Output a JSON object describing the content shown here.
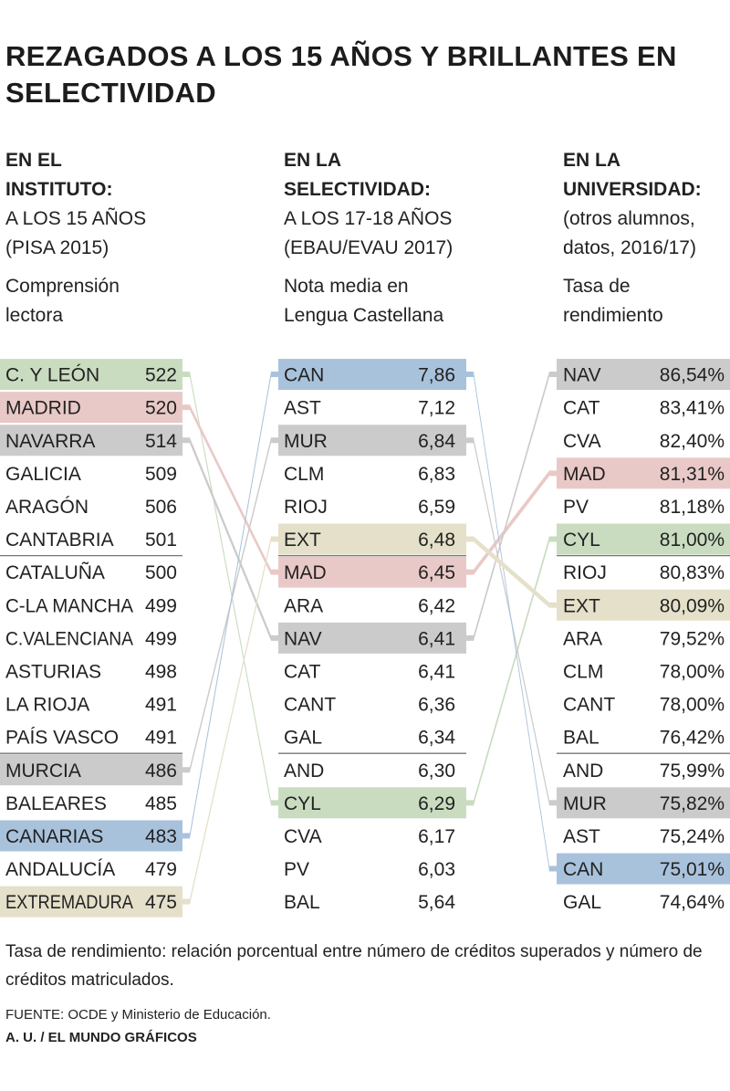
{
  "title": "REZAGADOS A LOS 15 AÑOS Y BRILLANTES EN SELECTIVIDAD",
  "colors": {
    "green": "#c9dcc0",
    "red": "#e9c9c7",
    "gray": "#cbcbcb",
    "blue": "#a9c2dc",
    "tan": "#e5e0ca"
  },
  "columns": [
    {
      "heading_bold": [
        "EN EL",
        "INSTITUTO:"
      ],
      "heading_normal": [
        "A LOS 15 AÑOS",
        "(PISA 2015)"
      ],
      "metric": [
        "Comprensión",
        "lectora"
      ]
    },
    {
      "heading_bold": [
        "EN LA",
        "SELECTIVIDAD:"
      ],
      "heading_normal": [
        "A LOS 17-18 AÑOS",
        "(EBAU/EVAU 2017)"
      ],
      "metric": [
        "Nota media en",
        "Lengua Castellana"
      ]
    },
    {
      "heading_bold": [
        "EN LA",
        "UNIVERSIDAD:"
      ],
      "heading_normal": [
        "(otros alumnos,",
        "datos, 2016/17)"
      ],
      "metric": [
        "Tasa de",
        "rendimiento"
      ]
    }
  ],
  "chart_data": {
    "type": "table",
    "columns": [
      {
        "rows": [
          {
            "label": "C. Y LEÓN",
            "value": "522",
            "hl": "green"
          },
          {
            "label": "MADRID",
            "value": "520",
            "hl": "red"
          },
          {
            "label": "NAVARRA",
            "value": "514",
            "hl": "gray"
          },
          {
            "label": "GALICIA",
            "value": "509"
          },
          {
            "label": "ARAGÓN",
            "value": "506"
          },
          {
            "label": "CANTABRIA",
            "value": "501"
          },
          {
            "label": "CATALUÑA",
            "value": "500"
          },
          {
            "label": "C-LA MANCHA",
            "value": "499"
          },
          {
            "label": "C.VALENCIANA",
            "value": "499"
          },
          {
            "label": "ASTURIAS",
            "value": "498"
          },
          {
            "label": "LA RIOJA",
            "value": "491"
          },
          {
            "label": "PAÍS VASCO",
            "value": "491"
          },
          {
            "label": "MURCIA",
            "value": "486",
            "hl": "gray"
          },
          {
            "label": "BALEARES",
            "value": "485"
          },
          {
            "label": "CANARIAS",
            "value": "483",
            "hl": "blue"
          },
          {
            "label": "ANDALUCÍA",
            "value": "479"
          },
          {
            "label": "EXTREMADURA",
            "value": "475",
            "hl": "tan"
          }
        ]
      },
      {
        "rows": [
          {
            "label": "CAN",
            "value": "7,86",
            "hl": "blue"
          },
          {
            "label": "AST",
            "value": "7,12"
          },
          {
            "label": "MUR",
            "value": "6,84",
            "hl": "gray"
          },
          {
            "label": "CLM",
            "value": "6,83"
          },
          {
            "label": "RIOJ",
            "value": "6,59"
          },
          {
            "label": "EXT",
            "value": "6,48",
            "hl": "tan"
          },
          {
            "label": "MAD",
            "value": "6,45",
            "hl": "red"
          },
          {
            "label": "ARA",
            "value": "6,42"
          },
          {
            "label": "NAV",
            "value": "6,41",
            "hl": "gray"
          },
          {
            "label": "CAT",
            "value": "6,41"
          },
          {
            "label": "CANT",
            "value": "6,36"
          },
          {
            "label": "GAL",
            "value": "6,34"
          },
          {
            "label": "AND",
            "value": "6,30"
          },
          {
            "label": "CYL",
            "value": "6,29",
            "hl": "green"
          },
          {
            "label": "CVA",
            "value": "6,17"
          },
          {
            "label": "PV",
            "value": "6,03"
          },
          {
            "label": "BAL",
            "value": "5,64"
          }
        ]
      },
      {
        "rows": [
          {
            "label": "NAV",
            "value": "86,54%",
            "hl": "gray"
          },
          {
            "label": "CAT",
            "value": "83,41%"
          },
          {
            "label": "CVA",
            "value": "82,40%"
          },
          {
            "label": "MAD",
            "value": "81,31%",
            "hl": "red"
          },
          {
            "label": "PV",
            "value": "81,18%"
          },
          {
            "label": "CYL",
            "value": "81,00%",
            "hl": "green"
          },
          {
            "label": "RIOJ",
            "value": "80,83%"
          },
          {
            "label": "EXT",
            "value": "80,09%",
            "hl": "tan"
          },
          {
            "label": "ARA",
            "value": "79,52%"
          },
          {
            "label": "CLM",
            "value": "78,00%"
          },
          {
            "label": "CANT",
            "value": "78,00%"
          },
          {
            "label": "BAL",
            "value": "76,42%"
          },
          {
            "label": "AND",
            "value": "75,99%"
          },
          {
            "label": "MUR",
            "value": "75,82%",
            "hl": "gray"
          },
          {
            "label": "AST",
            "value": "75,24%"
          },
          {
            "label": "CAN",
            "value": "75,01%",
            "hl": "blue"
          },
          {
            "label": "GAL",
            "value": "74,64%"
          }
        ]
      }
    ],
    "links": [
      {
        "color": "green",
        "path": [
          0,
          13,
          5
        ]
      },
      {
        "color": "red",
        "path": [
          1,
          6,
          3
        ]
      },
      {
        "color": "gray",
        "path": [
          2,
          8,
          0
        ]
      },
      {
        "color": "gray",
        "path": [
          12,
          2,
          13
        ]
      },
      {
        "color": "blue",
        "path": [
          14,
          0,
          15
        ]
      },
      {
        "color": "tan",
        "path": [
          16,
          5,
          7
        ]
      }
    ]
  },
  "footnote": "Tasa de rendimiento: relación porcentual entre número de créditos superados y número de créditos matriculados.",
  "source": "FUENTE: OCDE y Ministerio de Educación.",
  "credit": "A. U. / EL MUNDO GRÁFICOS"
}
